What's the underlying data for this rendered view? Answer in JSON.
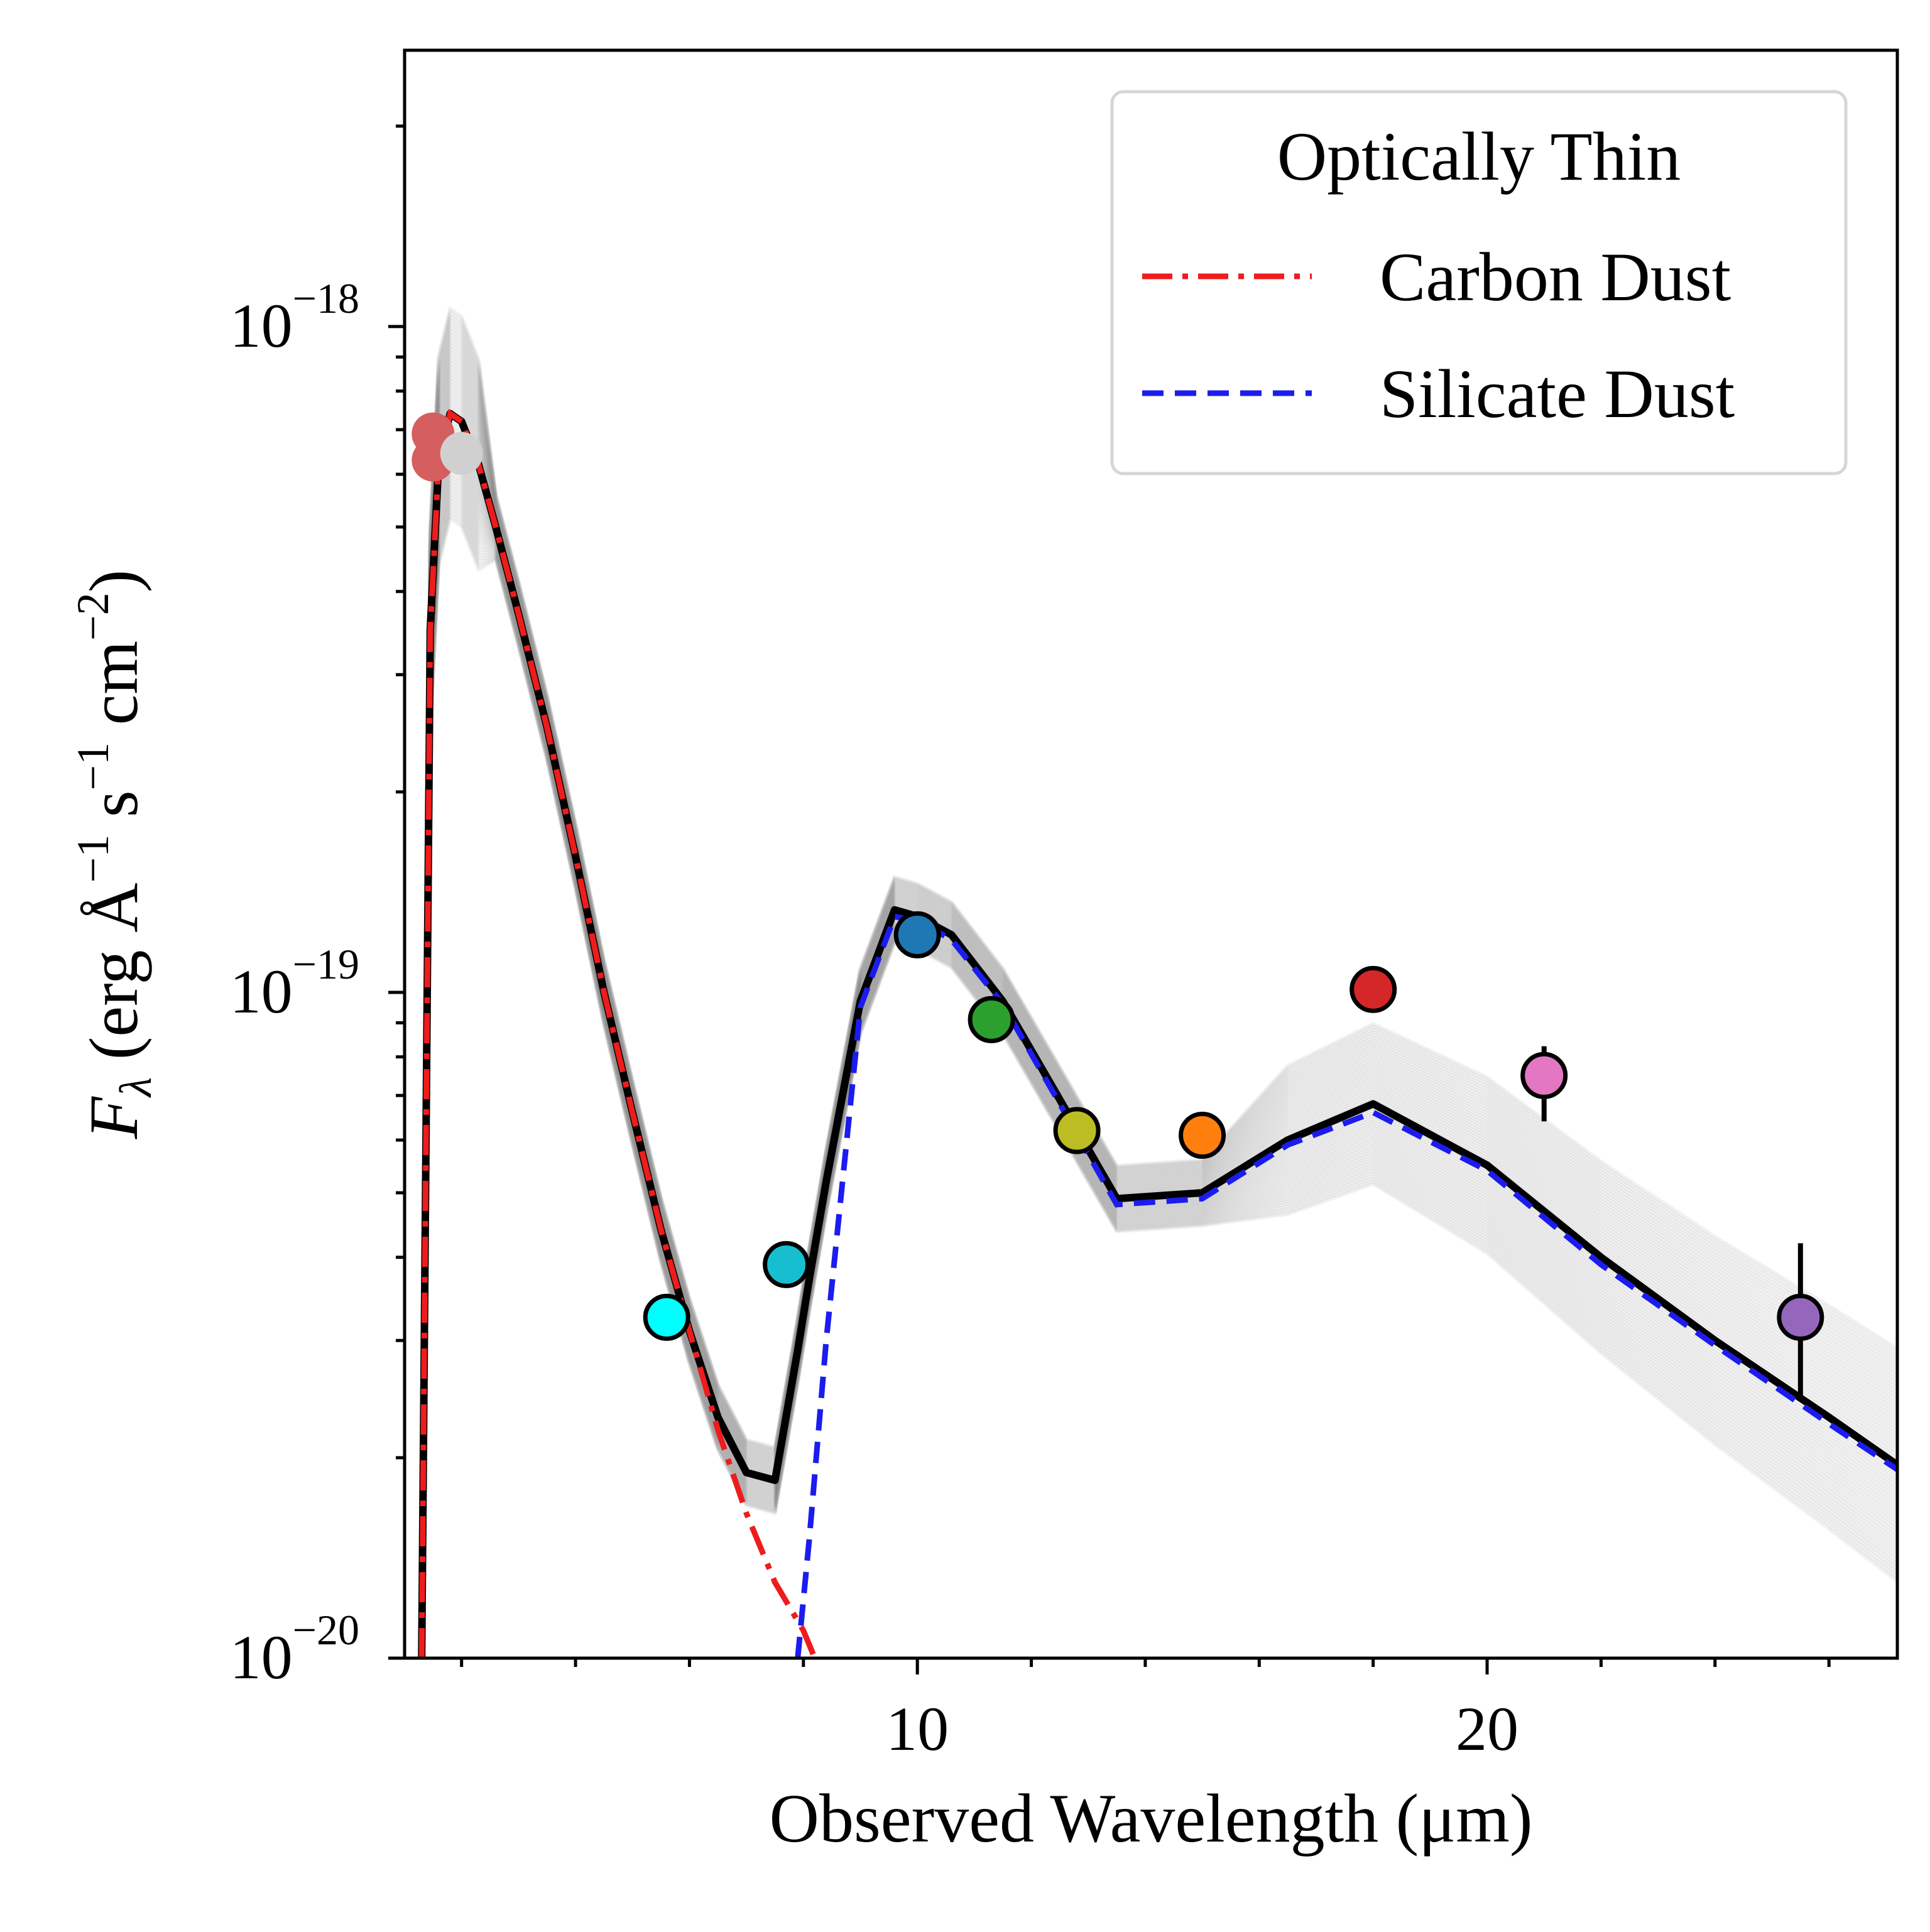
{
  "chart_data": {
    "type": "line",
    "title": "",
    "xlabel": "Observed Wavelength (μm)",
    "ylabel": {
      "symbol": "F",
      "subscript": "λ",
      "unit_open": " (erg ",
      "angstrom": "Å",
      "exp1": "−1",
      "s": " s",
      "exp2": "−1",
      "cm": " cm",
      "exp3": "−2",
      "unit_close": ")"
    },
    "xscale": "linear",
    "yscale": "log",
    "xlim": [
      1.0,
      27.2
    ],
    "ylim": [
      1e-20,
      2.6e-18
    ],
    "xticks": [
      {
        "value": 10,
        "label": "10"
      },
      {
        "value": 20,
        "label": "20"
      }
    ],
    "x_minor_step": 2,
    "yticks": [
      {
        "value": 1e-20,
        "base": "10",
        "exp": "−20"
      },
      {
        "value": 1e-19,
        "base": "10",
        "exp": "−19"
      },
      {
        "value": 1e-18,
        "base": "10",
        "exp": "−18"
      }
    ],
    "grid": false,
    "legend": {
      "position": "top-right",
      "title": "Optically Thin",
      "entries": [
        {
          "label": "Carbon Dust",
          "color": "#ee1c1c",
          "style": "dashdot"
        },
        {
          "label": "Silicate Dust",
          "color": "#1c1cee",
          "style": "dashed"
        }
      ]
    },
    "series": [
      {
        "name": "Carbon Dust",
        "color": "#ee1c1c",
        "style": "dashdot",
        "x": [
          1.3,
          1.45,
          1.6,
          1.8,
          2.0,
          2.3,
          2.6,
          3.0,
          3.5,
          4.0,
          4.5,
          5.0,
          5.5,
          6.0,
          6.5,
          7.0,
          7.5,
          8.0,
          8.2
        ],
        "y": [
          1e-20,
          3.5e-19,
          6.3e-19,
          7.4e-19,
          7.2e-19,
          6.2e-19,
          5e-19,
          3.7e-19,
          2.5e-19,
          1.6e-19,
          1e-19,
          6.6e-20,
          4.4e-20,
          3.1e-20,
          2.2e-20,
          1.65e-20,
          1.3e-20,
          1.1e-20,
          1e-20
        ]
      },
      {
        "name": "Silicate Dust",
        "color": "#1c1cee",
        "style": "dashed",
        "x": [
          7.9,
          8.1,
          8.4,
          9.0,
          9.6,
          10.0,
          10.6,
          11.5,
          12.5,
          13.5,
          15.0,
          16.5,
          18.0,
          20.0,
          22.0,
          24.0,
          26.0,
          27.2
        ],
        "y": [
          1e-20,
          1.5e-20,
          3e-20,
          9.5e-20,
          1.3e-19,
          1.28e-19,
          1.2e-19,
          9.6e-20,
          6.8e-20,
          4.8e-20,
          4.9e-20,
          5.9e-20,
          6.6e-20,
          5.4e-20,
          3.9e-20,
          2.95e-20,
          2.25e-20,
          1.92e-20
        ]
      }
    ],
    "total_model": {
      "color": "#000000",
      "x": [
        1.3,
        1.45,
        1.6,
        1.8,
        2.0,
        2.3,
        2.6,
        3.0,
        3.5,
        4.0,
        4.5,
        5.0,
        5.5,
        6.0,
        6.5,
        7.0,
        7.5,
        7.9,
        8.1,
        8.4,
        9.0,
        9.6,
        10.0,
        10.6,
        11.5,
        12.5,
        13.5,
        15.0,
        16.5,
        18.0,
        20.0,
        22.0,
        24.0,
        26.0,
        27.2
      ],
      "y": [
        1e-20,
        3.5e-19,
        6.3e-19,
        7.4e-19,
        7.2e-19,
        6.2e-19,
        5e-19,
        3.7e-19,
        2.5e-19,
        1.6e-19,
        1e-19,
        6.6e-20,
        4.4e-20,
        3.1e-20,
        2.3e-20,
        1.9e-20,
        1.85e-20,
        2.9e-20,
        3.7e-20,
        5.2e-20,
        9.7e-20,
        1.33e-19,
        1.3e-19,
        1.22e-19,
        9.7e-20,
        6.9e-20,
        4.9e-20,
        5e-20,
        6e-20,
        6.8e-20,
        5.5e-20,
        4e-20,
        3e-20,
        2.3e-20,
        1.95e-20
      ]
    },
    "posterior_draws": {
      "count": 60,
      "color": "#808080",
      "opacity": 0.12
    },
    "photometry": [
      {
        "x": 1.5,
        "y": 6.9e-19,
        "color": "#d55e5e",
        "edge": "none"
      },
      {
        "x": 1.5,
        "y": 6.3e-19,
        "color": "#d55e5e",
        "edge": "none"
      },
      {
        "x": 2.0,
        "y": 6.45e-19,
        "color": "#d0d0d0",
        "edge": "none"
      },
      {
        "x": 5.6,
        "y": 3.25e-20,
        "color": "#00ffff",
        "edge": "#000000"
      },
      {
        "x": 7.7,
        "y": 3.9e-20,
        "color": "#17becf",
        "edge": "#000000"
      },
      {
        "x": 10.0,
        "y": 1.22e-19,
        "color": "#1f77b4",
        "edge": "#000000"
      },
      {
        "x": 11.3,
        "y": 9.1e-20,
        "color": "#2ca02c",
        "edge": "#000000"
      },
      {
        "x": 12.8,
        "y": 6.2e-20,
        "color": "#bcbd22",
        "edge": "#000000"
      },
      {
        "x": 15.0,
        "y": 6.1e-20,
        "color": "#ff7f0e",
        "edge": "#000000"
      },
      {
        "x": 18.0,
        "y": 1.01e-19,
        "color": "#d62728",
        "edge": "#000000"
      },
      {
        "x": 21.0,
        "y": 7.5e-20,
        "color": "#e377c2",
        "edge": "#000000",
        "yerr": [
          6.4e-20,
          8.3e-20
        ]
      },
      {
        "x": 25.5,
        "y": 3.25e-20,
        "color": "#9467bd",
        "edge": "#000000",
        "yerr": [
          2.45e-20,
          4.2e-20
        ]
      }
    ]
  }
}
